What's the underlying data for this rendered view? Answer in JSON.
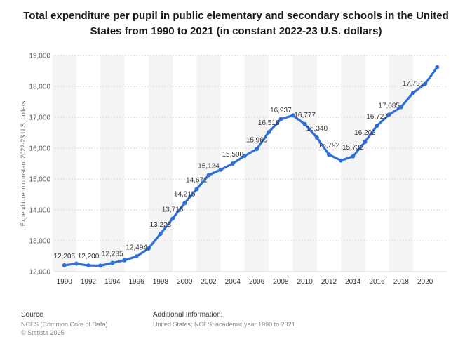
{
  "chart_data": {
    "type": "line",
    "title": "Total expenditure per pupil in public elementary and secondary schools in the United States from 1990 to 2021 (in constant 2022-23 U.S. dollars)",
    "xlabel": "",
    "ylabel": "Expenditure in constant 2022-23 U.S. dollars",
    "ylim": [
      12000,
      19000
    ],
    "yticks": [
      12000,
      13000,
      14000,
      15000,
      16000,
      17000,
      18000,
      19000
    ],
    "ytick_labels": [
      "12,000",
      "13,000",
      "14,000",
      "15,000",
      "16,000",
      "17,000",
      "18,000",
      "19,000"
    ],
    "xlim": [
      1989.2,
      2021.8
    ],
    "xticks": [
      1990,
      1992,
      1994,
      1996,
      1998,
      2000,
      2002,
      2004,
      2006,
      2008,
      2010,
      2012,
      2014,
      2016,
      2018,
      2020
    ],
    "xtick_labels": [
      "1990",
      "1992",
      "1994",
      "1996",
      "1998",
      "2000",
      "2002",
      "2004",
      "2006",
      "2008",
      "2010",
      "2012",
      "2014",
      "2016",
      "2018",
      "2020"
    ],
    "grid": true,
    "color": "#2f6fd6",
    "series": [
      {
        "name": "Expenditure per pupil",
        "x": [
          1990,
          1991,
          1992,
          1993,
          1994,
          1995,
          1996,
          1997,
          1998,
          1999,
          2000,
          2001,
          2002,
          2003,
          2004,
          2005,
          2006,
          2007,
          2008,
          2009,
          2010,
          2011,
          2012,
          2013,
          2014,
          2015,
          2016,
          2017,
          2018,
          2019,
          2020,
          2021
        ],
        "values": [
          12206,
          12260,
          12200,
          12195,
          12285,
          12370,
          12494,
          12750,
          13228,
          13716,
          14215,
          14671,
          15124,
          15300,
          15500,
          15750,
          15969,
          16518,
          16937,
          17060,
          16777,
          16340,
          15792,
          15600,
          15732,
          16202,
          16727,
          17085,
          17330,
          17791,
          18080,
          18620
        ]
      }
    ],
    "data_labels": [
      {
        "year": 1990,
        "text": "12,206"
      },
      {
        "year": 1992,
        "text": "12,200"
      },
      {
        "year": 1994,
        "text": "12,285"
      },
      {
        "year": 1996,
        "text": "12,494"
      },
      {
        "year": 1998,
        "text": "13,228"
      },
      {
        "year": 1999,
        "text": "13,716"
      },
      {
        "year": 2000,
        "text": "14,215"
      },
      {
        "year": 2001,
        "text": "14,671"
      },
      {
        "year": 2002,
        "text": "15,124"
      },
      {
        "year": 2004,
        "text": "15,500"
      },
      {
        "year": 2006,
        "text": "15,969"
      },
      {
        "year": 2007,
        "text": "16,518"
      },
      {
        "year": 2008,
        "text": "16,937"
      },
      {
        "year": 2010,
        "text": "16,777"
      },
      {
        "year": 2011,
        "text": "16,340"
      },
      {
        "year": 2012,
        "text": "15,792"
      },
      {
        "year": 2014,
        "text": "15,732"
      },
      {
        "year": 2015,
        "text": "16,202"
      },
      {
        "year": 2016,
        "text": "16,727"
      },
      {
        "year": 2017,
        "text": "17,085"
      },
      {
        "year": 2019,
        "text": "17,791"
      }
    ]
  },
  "footer": {
    "source_heading": "Source",
    "source_line1": "NCES (Common Core of Data)",
    "source_line2": "© Statista 2025",
    "additional_heading": "Additional Information:",
    "additional_text": "United States; NCES; academic year 1990 to 2021"
  }
}
